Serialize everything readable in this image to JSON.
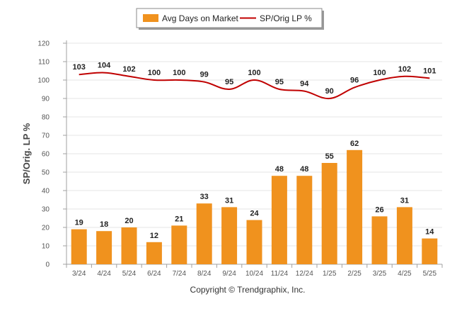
{
  "chart_data": {
    "type": "bar",
    "categories": [
      "3/24",
      "4/24",
      "5/24",
      "6/24",
      "7/24",
      "8/24",
      "9/24",
      "10/24",
      "11/24",
      "12/24",
      "1/25",
      "2/25",
      "3/25",
      "4/25",
      "5/25"
    ],
    "series": [
      {
        "name": "Avg Days on Market",
        "type": "bar",
        "color": "#F0921E",
        "values": [
          19,
          18,
          20,
          12,
          21,
          33,
          31,
          24,
          48,
          48,
          55,
          62,
          26,
          31,
          14
        ]
      },
      {
        "name": "SP/Orig LP %",
        "type": "line",
        "color": "#C00000",
        "values": [
          103,
          104,
          102,
          100,
          100,
          99,
          95,
          100,
          95,
          94,
          90,
          96,
          100,
          102,
          101
        ]
      }
    ],
    "ylabel": "SP/Orig. LP %",
    "ylim": [
      0,
      120
    ],
    "yticks": [
      0,
      10,
      20,
      30,
      40,
      50,
      60,
      70,
      80,
      90,
      100,
      110,
      120
    ],
    "grid": true,
    "legend_position": "top-center"
  },
  "legend": {
    "items": [
      "Avg Days on Market",
      "SP/Orig LP %"
    ]
  },
  "footer": {
    "copyright": "Copyright © Trendgraphix, Inc."
  }
}
